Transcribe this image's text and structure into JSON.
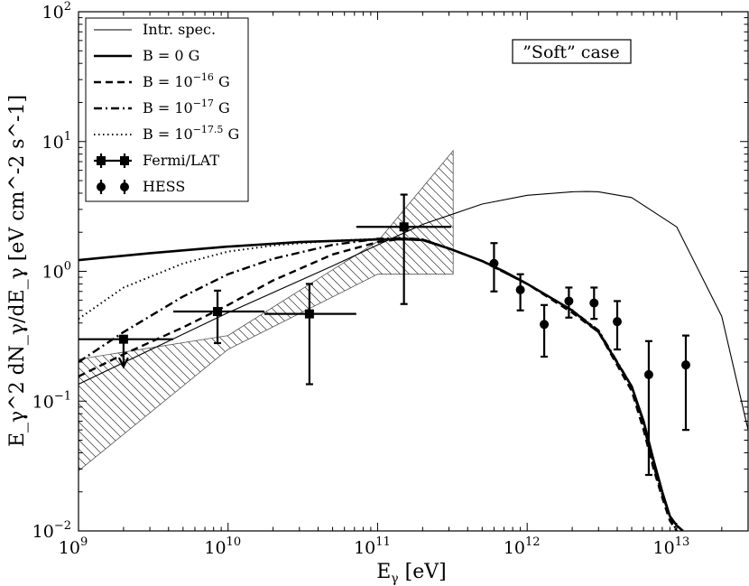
{
  "chart_data": {
    "type": "line",
    "scale": {
      "x": "log",
      "y": "log"
    },
    "xlim": [
      1000000000.0,
      30000000000000.0
    ],
    "ylim": [
      0.01,
      100
    ],
    "xlabel": {
      "main": "E",
      "sub": "γ",
      "unit": " [eV]"
    },
    "ylabel": "E_γ^2 dN_γ/dE_γ [eV cm^-2 s^-1]",
    "x_ticks": [
      {
        "base": "10",
        "exp": "9",
        "value": 1000000000.0
      },
      {
        "base": "10",
        "exp": "10",
        "value": 10000000000.0
      },
      {
        "base": "10",
        "exp": "11",
        "value": 100000000000.0
      },
      {
        "base": "10",
        "exp": "12",
        "value": 1000000000000.0
      },
      {
        "base": "10",
        "exp": "13",
        "value": 10000000000000.0
      }
    ],
    "y_ticks": [
      {
        "base": "10",
        "exp": "−2",
        "value": 0.01
      },
      {
        "base": "10",
        "exp": "−1",
        "value": 0.1
      },
      {
        "base": "10",
        "exp": "0",
        "value": 1
      },
      {
        "base": "10",
        "exp": "1",
        "value": 10
      },
      {
        "base": "10",
        "exp": "2",
        "value": 100
      }
    ],
    "annotation": "”Soft” case",
    "legend": [
      {
        "key": "intr",
        "label": "Intr. spec."
      },
      {
        "key": "b0",
        "label_pre": "B = 0 G"
      },
      {
        "key": "b16",
        "label_pre": "B = 10",
        "label_sup": "−16",
        "label_post": " G"
      },
      {
        "key": "b17",
        "label_pre": "B = 10",
        "label_sup": "−17",
        "label_post": " G"
      },
      {
        "key": "b175",
        "label_pre": "B = 10",
        "label_sup": "−17.5",
        "label_post": " G"
      },
      {
        "key": "fermi",
        "label": "Fermi/LAT"
      },
      {
        "key": "hess",
        "label": "HESS"
      }
    ],
    "series": [
      {
        "name": "Intr. spec.",
        "style": "thin",
        "x": [
          1000000000.0,
          10000000000.0,
          50000000000.0,
          100000000000.0,
          200000000000.0,
          500000000000.0,
          1000000000000.0,
          2000000000000.0,
          2500000000000.0,
          3000000000000.0,
          5000000000000.0,
          10000000000000.0,
          20000000000000.0,
          30000000000000.0
        ],
        "y": [
          0.135,
          0.48,
          1.1,
          1.6,
          2.3,
          3.3,
          3.85,
          4.1,
          4.12,
          4.1,
          3.7,
          2.2,
          0.45,
          0.06
        ]
      },
      {
        "name": "B = 0 G",
        "style": "thick",
        "x": [
          1000000000.0,
          3000000000.0,
          10000000000.0,
          30000000000.0,
          100000000000.0,
          150000000000.0,
          200000000000.0,
          300000000000.0,
          500000000000.0,
          700000000000.0,
          1000000000000.0,
          2000000000000.0,
          3000000000000.0,
          5000000000000.0,
          6000000000000.0,
          7000000000000.0,
          8000000000000.0,
          9000000000000.0,
          10000000000000.0,
          11000000000000.0
        ],
        "y": [
          1.22,
          1.38,
          1.55,
          1.68,
          1.76,
          1.77,
          1.74,
          1.5,
          1.2,
          1.0,
          0.8,
          0.5,
          0.34,
          0.13,
          0.07,
          0.035,
          0.02,
          0.013,
          0.011,
          0.01
        ]
      },
      {
        "name": "B = 10^-16 G",
        "style": "dashed",
        "x": [
          1000000000.0,
          2000000000.0,
          5000000000.0,
          10000000000.0,
          20000000000.0,
          50000000000.0,
          100000000000.0,
          150000000000.0,
          200000000000.0,
          300000000000.0,
          500000000000.0,
          1000000000000.0,
          2000000000000.0,
          3000000000000.0,
          5000000000000.0,
          6000000000000.0,
          7000000000000.0,
          8000000000000.0,
          9000000000000.0,
          10000000000000.0
        ],
        "y": [
          0.155,
          0.23,
          0.37,
          0.55,
          0.85,
          1.35,
          1.68,
          1.79,
          1.76,
          1.5,
          1.2,
          0.8,
          0.48,
          0.34,
          0.12,
          0.06,
          0.03,
          0.018,
          0.012,
          0.01
        ]
      },
      {
        "name": "B = 10^-17 G",
        "style": "dashdot",
        "x": [
          1000000000.0,
          2000000000.0,
          5000000000.0,
          10000000000.0,
          20000000000.0,
          50000000000.0,
          100000000000.0,
          150000000000.0,
          200000000000.0,
          300000000000.0,
          500000000000.0,
          1000000000000.0,
          2000000000000.0,
          3000000000000.0,
          5000000000000.0,
          6000000000000.0,
          7000000000000.0,
          8000000000000.0,
          9000000000000.0,
          10000000000000.0
        ],
        "y": [
          0.2,
          0.34,
          0.64,
          0.95,
          1.25,
          1.6,
          1.78,
          1.8,
          1.76,
          1.5,
          1.2,
          0.8,
          0.5,
          0.35,
          0.13,
          0.065,
          0.032,
          0.019,
          0.013,
          0.01
        ]
      },
      {
        "name": "B = 10^-17.5 G",
        "style": "dotted",
        "x": [
          1000000000.0,
          2000000000.0,
          5000000000.0,
          10000000000.0,
          20000000000.0,
          50000000000.0,
          100000000000.0,
          150000000000.0,
          200000000000.0,
          300000000000.0,
          500000000000.0,
          1000000000000.0,
          2000000000000.0,
          3000000000000.0,
          5000000000000.0,
          6000000000000.0,
          7000000000000.0,
          8000000000000.0,
          9000000000000.0,
          10000000000000.0
        ],
        "y": [
          0.43,
          0.75,
          1.15,
          1.42,
          1.58,
          1.72,
          1.78,
          1.79,
          1.76,
          1.5,
          1.2,
          0.8,
          0.5,
          0.35,
          0.13,
          0.065,
          0.032,
          0.019,
          0.013,
          0.01
        ]
      }
    ],
    "fermi_band": {
      "x": [
        1000000000.0,
        10000000000.0,
        100000000000.0,
        320000000000.0
      ],
      "upper": [
        0.21,
        0.32,
        1.7,
        8.5
      ],
      "lower": [
        0.029,
        0.25,
        0.95,
        0.95
      ]
    },
    "fermi_points": [
      {
        "x": 2000000000.0,
        "x_lo": 1000000000.0,
        "x_hi": 4300000000.0,
        "y": 0.3,
        "upper_limit": true,
        "y_lo": 0.19
      },
      {
        "x": 8500000000.0,
        "x_lo": 4300000000.0,
        "x_hi": 17500000000.0,
        "y": 0.49,
        "y_lo": 0.28,
        "y_hi": 0.71
      },
      {
        "x": 35000000000.0,
        "x_lo": 17500000000.0,
        "x_hi": 72000000000.0,
        "y": 0.47,
        "y_lo": 0.135,
        "y_hi": 0.8
      },
      {
        "x": 150000000000.0,
        "x_lo": 72000000000.0,
        "x_hi": 310000000000.0,
        "y": 2.2,
        "y_lo": 0.56,
        "y_hi": 3.9
      }
    ],
    "hess_points": [
      {
        "x": 600000000000.0,
        "y": 1.15,
        "y_lo": 0.7,
        "y_hi": 1.65
      },
      {
        "x": 900000000000.0,
        "y": 0.72,
        "y_lo": 0.5,
        "y_hi": 0.95
      },
      {
        "x": 1300000000000.0,
        "y": 0.39,
        "y_lo": 0.22,
        "y_hi": 0.55
      },
      {
        "x": 1900000000000.0,
        "y": 0.59,
        "y_lo": 0.44,
        "y_hi": 0.75
      },
      {
        "x": 2800000000000.0,
        "y": 0.57,
        "y_lo": 0.43,
        "y_hi": 0.75
      },
      {
        "x": 4000000000000.0,
        "y": 0.41,
        "y_lo": 0.25,
        "y_hi": 0.59
      },
      {
        "x": 6500000000000.0,
        "y": 0.16,
        "y_lo": 0.027,
        "y_hi": 0.29
      },
      {
        "x": 11500000000000.0,
        "y": 0.19,
        "y_lo": 0.06,
        "y_hi": 0.32
      }
    ]
  }
}
